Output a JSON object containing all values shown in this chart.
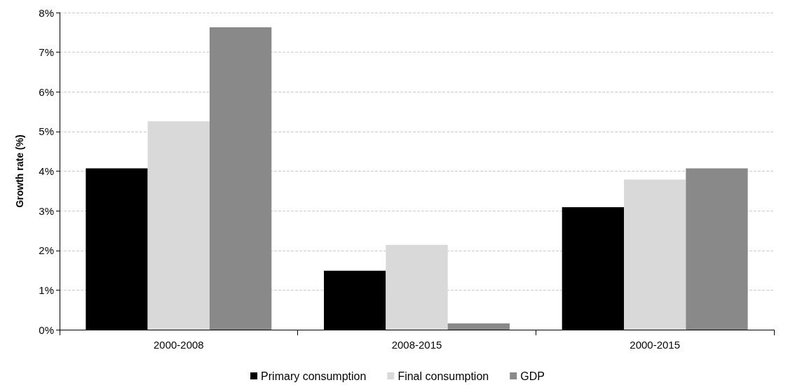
{
  "chart_data": {
    "type": "bar",
    "ylabel": "Growth rate (%)",
    "categories": [
      "2000-2008",
      "2008-2015",
      "2000-2015"
    ],
    "series": [
      {
        "name": "Primary consumption",
        "color": "#000000",
        "values": [
          4.07,
          1.49,
          3.09
        ]
      },
      {
        "name": "Final consumption",
        "color": "#d9d9d9",
        "values": [
          5.26,
          2.14,
          3.79
        ]
      },
      {
        "name": "GDP",
        "color": "#898989",
        "values": [
          7.63,
          0.16,
          4.07
        ]
      }
    ],
    "ylim": [
      0,
      8
    ],
    "yticks": [
      {
        "value": 0,
        "label": "0%"
      },
      {
        "value": 1,
        "label": "1%"
      },
      {
        "value": 2,
        "label": "2%"
      },
      {
        "value": 3,
        "label": "3%"
      },
      {
        "value": 4,
        "label": "4%"
      },
      {
        "value": 5,
        "label": "5%"
      },
      {
        "value": 6,
        "label": "6%"
      },
      {
        "value": 7,
        "label": "7%"
      },
      {
        "value": 8,
        "label": "8%"
      }
    ],
    "grid": "y",
    "legend": "bottom"
  }
}
